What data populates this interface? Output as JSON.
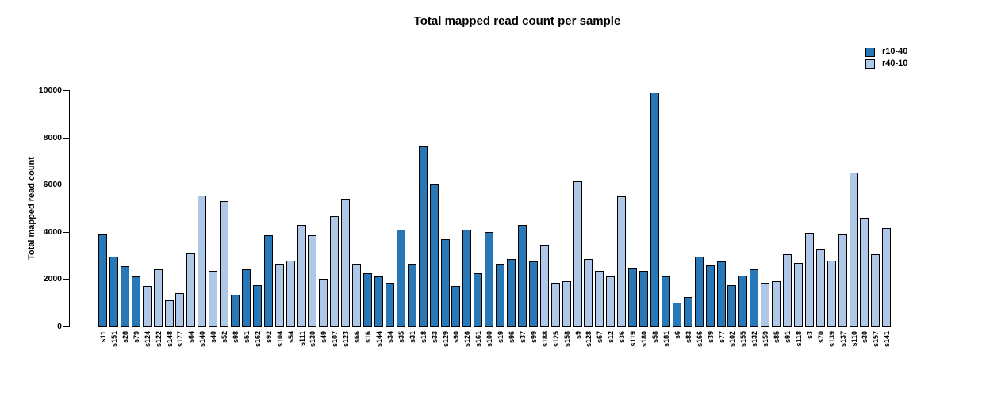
{
  "figure": {
    "title": "Total mapped read count per sample",
    "ylabel": "Total mapped read count"
  },
  "legend": {
    "items": [
      {
        "label": "r10-40",
        "color": "#2878b8"
      },
      {
        "label": "r40-10",
        "color": "#b0c8e8"
      }
    ]
  },
  "chart_data": {
    "type": "bar",
    "title": "Total mapped read count per sample",
    "xlabel": "",
    "ylabel": "Total mapped read count",
    "ylim": [
      0,
      10000
    ],
    "yticks": [
      0,
      2000,
      4000,
      6000,
      8000,
      10000
    ],
    "grid": false,
    "legend_position": "top-right",
    "bar_border_color": "#000000",
    "series": [
      {
        "name": "r10-40",
        "color": "#2878b8"
      },
      {
        "name": "r40-10",
        "color": "#b0c8e8"
      }
    ],
    "samples": [
      {
        "label": "s11",
        "group": "r10-40",
        "value": 3900
      },
      {
        "label": "s151",
        "group": "r10-40",
        "value": 2950
      },
      {
        "label": "s28",
        "group": "r10-40",
        "value": 2550
      },
      {
        "label": "s79",
        "group": "r10-40",
        "value": 2100
      },
      {
        "label": "s124",
        "group": "r40-10",
        "value": 1700
      },
      {
        "label": "s122",
        "group": "r40-10",
        "value": 2400
      },
      {
        "label": "s148",
        "group": "r40-10",
        "value": 1100
      },
      {
        "label": "s177",
        "group": "r40-10",
        "value": 1400
      },
      {
        "label": "s64",
        "group": "r40-10",
        "value": 3100
      },
      {
        "label": "s140",
        "group": "r40-10",
        "value": 5550
      },
      {
        "label": "s40",
        "group": "r40-10",
        "value": 2350
      },
      {
        "label": "s52",
        "group": "r40-10",
        "value": 5300
      },
      {
        "label": "s98",
        "group": "r10-40",
        "value": 1350
      },
      {
        "label": "s51",
        "group": "r10-40",
        "value": 2400
      },
      {
        "label": "s162",
        "group": "r10-40",
        "value": 1750
      },
      {
        "label": "s92",
        "group": "r10-40",
        "value": 3850
      },
      {
        "label": "s104",
        "group": "r40-10",
        "value": 2650
      },
      {
        "label": "s54",
        "group": "r40-10",
        "value": 2800
      },
      {
        "label": "s111",
        "group": "r40-10",
        "value": 4300
      },
      {
        "label": "s130",
        "group": "r40-10",
        "value": 3850
      },
      {
        "label": "s49",
        "group": "r40-10",
        "value": 2000
      },
      {
        "label": "s107",
        "group": "r40-10",
        "value": 4650
      },
      {
        "label": "s123",
        "group": "r40-10",
        "value": 5400
      },
      {
        "label": "s66",
        "group": "r40-10",
        "value": 2650
      },
      {
        "label": "s16",
        "group": "r10-40",
        "value": 2250
      },
      {
        "label": "s144",
        "group": "r10-40",
        "value": 2100
      },
      {
        "label": "s34",
        "group": "r10-40",
        "value": 1850
      },
      {
        "label": "s35",
        "group": "r10-40",
        "value": 4100
      },
      {
        "label": "s31",
        "group": "r10-40",
        "value": 2650
      },
      {
        "label": "s18",
        "group": "r10-40",
        "value": 7650
      },
      {
        "label": "s33",
        "group": "r10-40",
        "value": 6050
      },
      {
        "label": "s129",
        "group": "r10-40",
        "value": 3700
      },
      {
        "label": "s90",
        "group": "r10-40",
        "value": 1700
      },
      {
        "label": "s126",
        "group": "r10-40",
        "value": 4100
      },
      {
        "label": "s161",
        "group": "r10-40",
        "value": 2250
      },
      {
        "label": "s100",
        "group": "r10-40",
        "value": 4000
      },
      {
        "label": "s19",
        "group": "r10-40",
        "value": 2650
      },
      {
        "label": "s96",
        "group": "r10-40",
        "value": 2850
      },
      {
        "label": "s37",
        "group": "r10-40",
        "value": 4300
      },
      {
        "label": "s99",
        "group": "r10-40",
        "value": 2750
      },
      {
        "label": "s188",
        "group": "r40-10",
        "value": 3450
      },
      {
        "label": "s125",
        "group": "r40-10",
        "value": 1850
      },
      {
        "label": "s158",
        "group": "r40-10",
        "value": 1900
      },
      {
        "label": "s9",
        "group": "r40-10",
        "value": 6150
      },
      {
        "label": "s128",
        "group": "r40-10",
        "value": 2850
      },
      {
        "label": "s67",
        "group": "r40-10",
        "value": 2350
      },
      {
        "label": "s12",
        "group": "r40-10",
        "value": 2100
      },
      {
        "label": "s36",
        "group": "r40-10",
        "value": 5500
      },
      {
        "label": "s119",
        "group": "r10-40",
        "value": 2450
      },
      {
        "label": "s180",
        "group": "r10-40",
        "value": 2350
      },
      {
        "label": "s58",
        "group": "r10-40",
        "value": 9900
      },
      {
        "label": "s181",
        "group": "r10-40",
        "value": 2100
      },
      {
        "label": "s6",
        "group": "r10-40",
        "value": 1000
      },
      {
        "label": "s83",
        "group": "r10-40",
        "value": 1250
      },
      {
        "label": "s166",
        "group": "r10-40",
        "value": 2950
      },
      {
        "label": "s39",
        "group": "r10-40",
        "value": 2600
      },
      {
        "label": "s77",
        "group": "r10-40",
        "value": 2750
      },
      {
        "label": "s102",
        "group": "r10-40",
        "value": 1750
      },
      {
        "label": "s155",
        "group": "r10-40",
        "value": 2150
      },
      {
        "label": "s132",
        "group": "r10-40",
        "value": 2400
      },
      {
        "label": "s159",
        "group": "r40-10",
        "value": 1850
      },
      {
        "label": "s85",
        "group": "r40-10",
        "value": 1900
      },
      {
        "label": "s91",
        "group": "r40-10",
        "value": 3050
      },
      {
        "label": "s118",
        "group": "r40-10",
        "value": 2700
      },
      {
        "label": "s3",
        "group": "r40-10",
        "value": 3950
      },
      {
        "label": "s70",
        "group": "r40-10",
        "value": 3250
      },
      {
        "label": "s139",
        "group": "r40-10",
        "value": 2800
      },
      {
        "label": "s137",
        "group": "r40-10",
        "value": 3900
      },
      {
        "label": "s110",
        "group": "r40-10",
        "value": 6500
      },
      {
        "label": "s30",
        "group": "r40-10",
        "value": 4600
      },
      {
        "label": "s157",
        "group": "r40-10",
        "value": 3050
      },
      {
        "label": "s141",
        "group": "r40-10",
        "value": 4150
      }
    ]
  }
}
